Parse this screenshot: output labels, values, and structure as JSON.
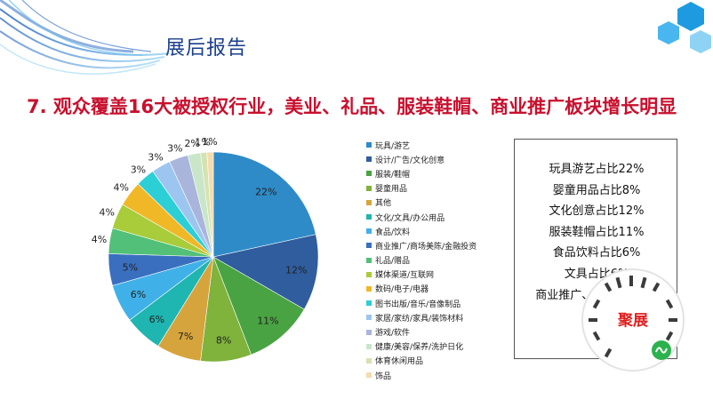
{
  "header": {
    "title": "展后报告"
  },
  "headline": "7. 观众覆盖16大被授权行业，美业、礼品、服装鞋帽、商业推广板块增长明显",
  "summary": [
    "玩具游艺占比22%",
    "婴童用品占比8%",
    "文化创意占比12%",
    "服装鞋帽占比11%",
    "食品饮料占比6%",
    "文具占比6%",
    "商业推广、商业空间5%"
  ],
  "qr": {
    "label": "聚展",
    "icon": "wechat-mini-program-icon"
  },
  "chart_data": {
    "type": "pie",
    "start_angle_deg": 0,
    "direction": "clockwise",
    "slices": [
      {
        "name": "玩具/游艺",
        "value": 22,
        "label": "22%",
        "color": "#2e8bc8"
      },
      {
        "name": "设计/广告/文化创意",
        "value": 12,
        "label": "12%",
        "color": "#2f5d9e"
      },
      {
        "name": "服装/鞋帽",
        "value": 11,
        "label": "11%",
        "color": "#4aa343"
      },
      {
        "name": "婴童用品",
        "value": 8,
        "label": "8%",
        "color": "#7fb33c"
      },
      {
        "name": "其他",
        "value": 7,
        "label": "7%",
        "color": "#d6a43c"
      },
      {
        "name": "文化/文具/办公用品",
        "value": 6,
        "label": "6%",
        "color": "#1fb5b0"
      },
      {
        "name": "食品/饮料",
        "value": 6,
        "label": "6%",
        "color": "#3fb1e8"
      },
      {
        "name": "商业推广/商场美陈/金融投资",
        "value": 5,
        "label": "5%",
        "color": "#3a6fc0"
      },
      {
        "name": "礼品/赠品",
        "value": 4,
        "label": "4%",
        "color": "#52c078"
      },
      {
        "name": "媒体渠道/互联网",
        "value": 4,
        "label": "4%",
        "color": "#a8cc3a"
      },
      {
        "name": "数码/电子/电器",
        "value": 4,
        "label": "4%",
        "color": "#f0b826"
      },
      {
        "name": "图书出版/音乐/音像制品",
        "value": 3,
        "label": "3%",
        "color": "#2ccfd6"
      },
      {
        "name": "家居/家纺/家具/装饰材料",
        "value": 3,
        "label": "3%",
        "color": "#9cc6ef"
      },
      {
        "name": "游戏/软件",
        "value": 3,
        "label": "3%",
        "color": "#aab5dc"
      },
      {
        "name": "健康/美容/保养/洗护日化",
        "value": 2,
        "label": "2%",
        "color": "#c9e6c9"
      },
      {
        "name": "体育休闲用品",
        "value": 1,
        "label": "1%",
        "color": "#d4e3b0"
      },
      {
        "name": "饰品",
        "value": 1,
        "label": "1%",
        "color": "#f4dcae"
      }
    ]
  }
}
